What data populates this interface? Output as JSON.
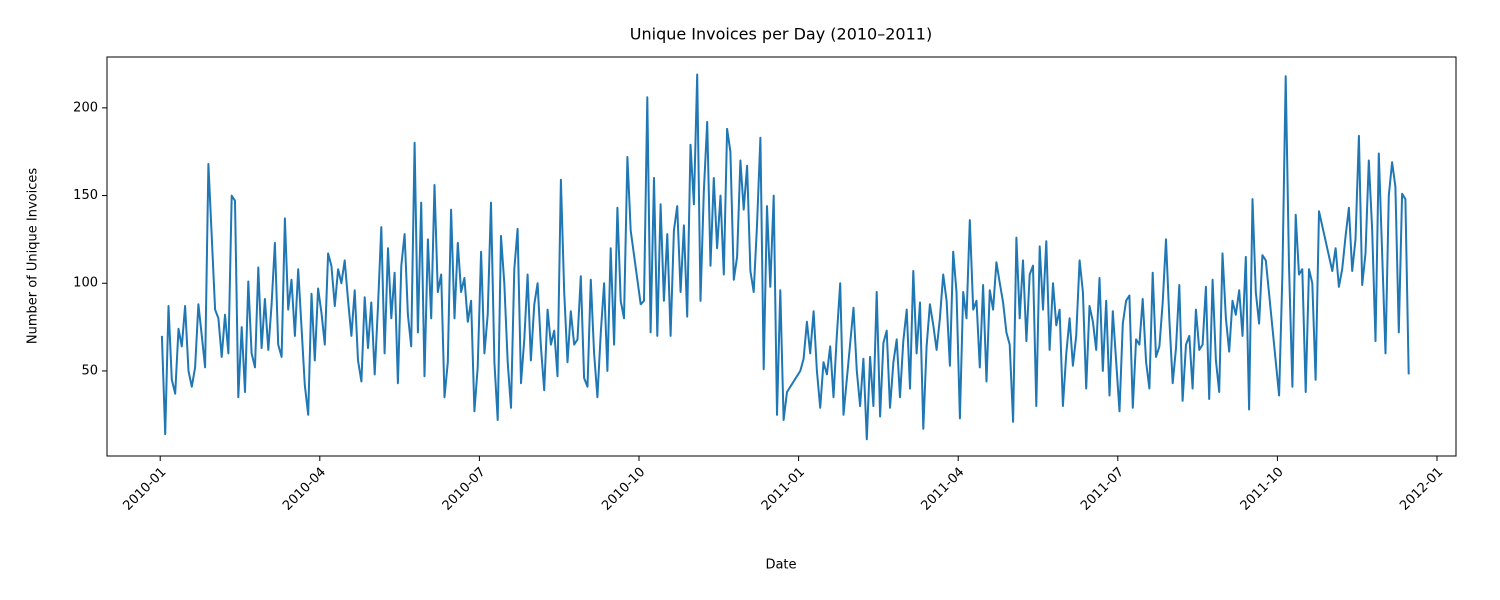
{
  "chart_data": {
    "type": "line",
    "title": "Unique Invoices per Day (2010–2011)",
    "x_label": "Date",
    "y_label": "Number of Unique Invoices",
    "color": "#1f77b4",
    "xlim": [
      "2009-12",
      "2012-01"
    ],
    "xticks": [
      "2010-01",
      "2010-04",
      "2010-07",
      "2010-10",
      "2011-01",
      "2011-04",
      "2011-07",
      "2011-10",
      "2012-01"
    ],
    "ylim": [
      1.5,
      229
    ],
    "yticks": [
      50,
      100,
      150,
      200
    ],
    "x": [
      "2010-01",
      "2010-01",
      "2010-01",
      "2010-01",
      "2010-01",
      "2010-01",
      "2010-01",
      "2010-01",
      "2010-01",
      "2010-01",
      "2010-01",
      "2010-01",
      "2010-01",
      "2010-01",
      "2010-01",
      "2010-02",
      "2010-02",
      "2010-02",
      "2010-02",
      "2010-02",
      "2010-02",
      "2010-02",
      "2010-02",
      "2010-02",
      "2010-02",
      "2010-02",
      "2010-02",
      "2010-02",
      "2010-02",
      "2010-02",
      "2010-02",
      "2010-03",
      "2010-03",
      "2010-03",
      "2010-03",
      "2010-03",
      "2010-03",
      "2010-03",
      "2010-03",
      "2010-03",
      "2010-03",
      "2010-03",
      "2010-03",
      "2010-03",
      "2010-03",
      "2010-03",
      "2010-03",
      "2010-04",
      "2010-04",
      "2010-04",
      "2010-04",
      "2010-04",
      "2010-04",
      "2010-04",
      "2010-04",
      "2010-04",
      "2010-04",
      "2010-04",
      "2010-04",
      "2010-04",
      "2010-04",
      "2010-04",
      "2010-04",
      "2010-05",
      "2010-05",
      "2010-05",
      "2010-05",
      "2010-05",
      "2010-05",
      "2010-05",
      "2010-05",
      "2010-05",
      "2010-05",
      "2010-05",
      "2010-05",
      "2010-05",
      "2010-05",
      "2010-05",
      "2010-05",
      "2010-06",
      "2010-06",
      "2010-06",
      "2010-06",
      "2010-06",
      "2010-06",
      "2010-06",
      "2010-06",
      "2010-06",
      "2010-06",
      "2010-06",
      "2010-06",
      "2010-06",
      "2010-06",
      "2010-06",
      "2010-06",
      "2010-07",
      "2010-07",
      "2010-07",
      "2010-07",
      "2010-07",
      "2010-07",
      "2010-07",
      "2010-07",
      "2010-07",
      "2010-07",
      "2010-07",
      "2010-07",
      "2010-07",
      "2010-07",
      "2010-07",
      "2010-07",
      "2010-08",
      "2010-08",
      "2010-08",
      "2010-08",
      "2010-08",
      "2010-08",
      "2010-08",
      "2010-08",
      "2010-08",
      "2010-08",
      "2010-08",
      "2010-08",
      "2010-08",
      "2010-08",
      "2010-08",
      "2010-08",
      "2010-09",
      "2010-09",
      "2010-09",
      "2010-09",
      "2010-09",
      "2010-09",
      "2010-09",
      "2010-09",
      "2010-09",
      "2010-09",
      "2010-09",
      "2010-09",
      "2010-09",
      "2010-09",
      "2010-10",
      "2010-10",
      "2010-10",
      "2010-10",
      "2010-10",
      "2010-10",
      "2010-10",
      "2010-10",
      "2010-10",
      "2010-10",
      "2010-10",
      "2010-10",
      "2010-10",
      "2010-10",
      "2010-10",
      "2010-10",
      "2010-11",
      "2010-11",
      "2010-11",
      "2010-11",
      "2010-11",
      "2010-11",
      "2010-11",
      "2010-11",
      "2010-11",
      "2010-11",
      "2010-11",
      "2010-11",
      "2010-11",
      "2010-11",
      "2010-11",
      "2010-11",
      "2010-12",
      "2010-12",
      "2010-12",
      "2010-12",
      "2010-12",
      "2010-12",
      "2010-12",
      "2010-12",
      "2010-12",
      "2010-12",
      "2010-12",
      "2010-12",
      "2010-12",
      "2011-01",
      "2011-01",
      "2011-01",
      "2011-01",
      "2011-01",
      "2011-01",
      "2011-01",
      "2011-01",
      "2011-01",
      "2011-01",
      "2011-01",
      "2011-01",
      "2011-01",
      "2011-01",
      "2011-02",
      "2011-02",
      "2011-02",
      "2011-02",
      "2011-02",
      "2011-02",
      "2011-02",
      "2011-02",
      "2011-02",
      "2011-02",
      "2011-02",
      "2011-02",
      "2011-02",
      "2011-02",
      "2011-02",
      "2011-02",
      "2011-03",
      "2011-03",
      "2011-03",
      "2011-03",
      "2011-03",
      "2011-03",
      "2011-03",
      "2011-03",
      "2011-03",
      "2011-03",
      "2011-03",
      "2011-03",
      "2011-03",
      "2011-03",
      "2011-03",
      "2011-03",
      "2011-04",
      "2011-04",
      "2011-04",
      "2011-04",
      "2011-04",
      "2011-04",
      "2011-04",
      "2011-04",
      "2011-04",
      "2011-04",
      "2011-04",
      "2011-04",
      "2011-04",
      "2011-04",
      "2011-04",
      "2011-04",
      "2011-05",
      "2011-05",
      "2011-05",
      "2011-05",
      "2011-05",
      "2011-05",
      "2011-05",
      "2011-05",
      "2011-05",
      "2011-05",
      "2011-05",
      "2011-05",
      "2011-05",
      "2011-05",
      "2011-05",
      "2011-05",
      "2011-06",
      "2011-06",
      "2011-06",
      "2011-06",
      "2011-06",
      "2011-06",
      "2011-06",
      "2011-06",
      "2011-06",
      "2011-06",
      "2011-06",
      "2011-06",
      "2011-06",
      "2011-06",
      "2011-06",
      "2011-07",
      "2011-07",
      "2011-07",
      "2011-07",
      "2011-07",
      "2011-07",
      "2011-07",
      "2011-07",
      "2011-07",
      "2011-07",
      "2011-07",
      "2011-07",
      "2011-07",
      "2011-07",
      "2011-07",
      "2011-07",
      "2011-08",
      "2011-08",
      "2011-08",
      "2011-08",
      "2011-08",
      "2011-08",
      "2011-08",
      "2011-08",
      "2011-08",
      "2011-08",
      "2011-08",
      "2011-08",
      "2011-08",
      "2011-08",
      "2011-08",
      "2011-08",
      "2011-09",
      "2011-09",
      "2011-09",
      "2011-09",
      "2011-09",
      "2011-09",
      "2011-09",
      "2011-09",
      "2011-09",
      "2011-09",
      "2011-09",
      "2011-09",
      "2011-09",
      "2011-10",
      "2011-10",
      "2011-10",
      "2011-10",
      "2011-10",
      "2011-10",
      "2011-10",
      "2011-10",
      "2011-10",
      "2011-10",
      "2011-10",
      "2011-10",
      "2011-10",
      "2011-11",
      "2011-11",
      "2011-11",
      "2011-11",
      "2011-11",
      "2011-11",
      "2011-11",
      "2011-11",
      "2011-11",
      "2011-11",
      "2011-11",
      "2011-11",
      "2011-11",
      "2011-11",
      "2011-11",
      "2011-12",
      "2011-12",
      "2011-12",
      "2011-12",
      "2011-12",
      "2011-12",
      "2011-12",
      "2011-12"
    ],
    "values": [
      70,
      14,
      87,
      45,
      37,
      74,
      64,
      87,
      50,
      41,
      52,
      88,
      70,
      52,
      168,
      85,
      80,
      58,
      82,
      60,
      150,
      147,
      35,
      75,
      38,
      101,
      60,
      52,
      109,
      63,
      91,
      62,
      88,
      123,
      65,
      58,
      137,
      85,
      102,
      70,
      108,
      75,
      42,
      25,
      94,
      56,
      97,
      83,
      65,
      117,
      110,
      87,
      108,
      100,
      113,
      90,
      70,
      96,
      56,
      44,
      92,
      63,
      89,
      48,
      87,
      132,
      60,
      120,
      80,
      106,
      43,
      110,
      128,
      82,
      64,
      180,
      72,
      146,
      47,
      125,
      80,
      156,
      95,
      105,
      35,
      55,
      142,
      80,
      123,
      95,
      103,
      78,
      90,
      27,
      52,
      118,
      60,
      82,
      146,
      55,
      22,
      127,
      100,
      55,
      29,
      108,
      131,
      43,
      68,
      105,
      56,
      88,
      100,
      64,
      39,
      85,
      65,
      73,
      47,
      159,
      95,
      55,
      84,
      65,
      68,
      104,
      46,
      41,
      102,
      60,
      35,
      72,
      100,
      50,
      120,
      65,
      143,
      90,
      80,
      172,
      130,
      88,
      90,
      206,
      72,
      160,
      70,
      145,
      90,
      128,
      70,
      130,
      144,
      95,
      133,
      81,
      179,
      145,
      219,
      90,
      152,
      192,
      110,
      160,
      120,
      150,
      105,
      188,
      175,
      102,
      115,
      170,
      142,
      167,
      107,
      95,
      133,
      183,
      51,
      144,
      98,
      150,
      25,
      96,
      22,
      38,
      50,
      57,
      78,
      60,
      84,
      50,
      29,
      55,
      48,
      64,
      35,
      70,
      100,
      25,
      86,
      50,
      30,
      57,
      11,
      58,
      30,
      95,
      24,
      66,
      73,
      29,
      55,
      68,
      35,
      67,
      85,
      40,
      107,
      60,
      89,
      17,
      64,
      88,
      76,
      62,
      80,
      105,
      90,
      53,
      118,
      95,
      23,
      95,
      80,
      136,
      85,
      90,
      52,
      99,
      44,
      96,
      85,
      112,
      100,
      89,
      72,
      65,
      21,
      126,
      80,
      113,
      67,
      105,
      110,
      30,
      121,
      85,
      124,
      62,
      100,
      76,
      85,
      30,
      60,
      80,
      53,
      70,
      113,
      95,
      40,
      87,
      78,
      62,
      103,
      50,
      90,
      36,
      84,
      27,
      77,
      90,
      93,
      29,
      68,
      65,
      91,
      55,
      40,
      106,
      58,
      64,
      89,
      125,
      80,
      43,
      63,
      99,
      33,
      65,
      70,
      40,
      85,
      62,
      65,
      98,
      34,
      102,
      56,
      38,
      117,
      80,
      61,
      90,
      82,
      96,
      70,
      115,
      28,
      148,
      95,
      77,
      116,
      113,
      36,
      105,
      218,
      110,
      41,
      139,
      105,
      108,
      38,
      108,
      100,
      45,
      141,
      107,
      120,
      98,
      108,
      127,
      143,
      107,
      125,
      184,
      99,
      117,
      170,
      130,
      67,
      174,
      60,
      150,
      169,
      155,
      72,
      151,
      148,
      48
    ]
  }
}
